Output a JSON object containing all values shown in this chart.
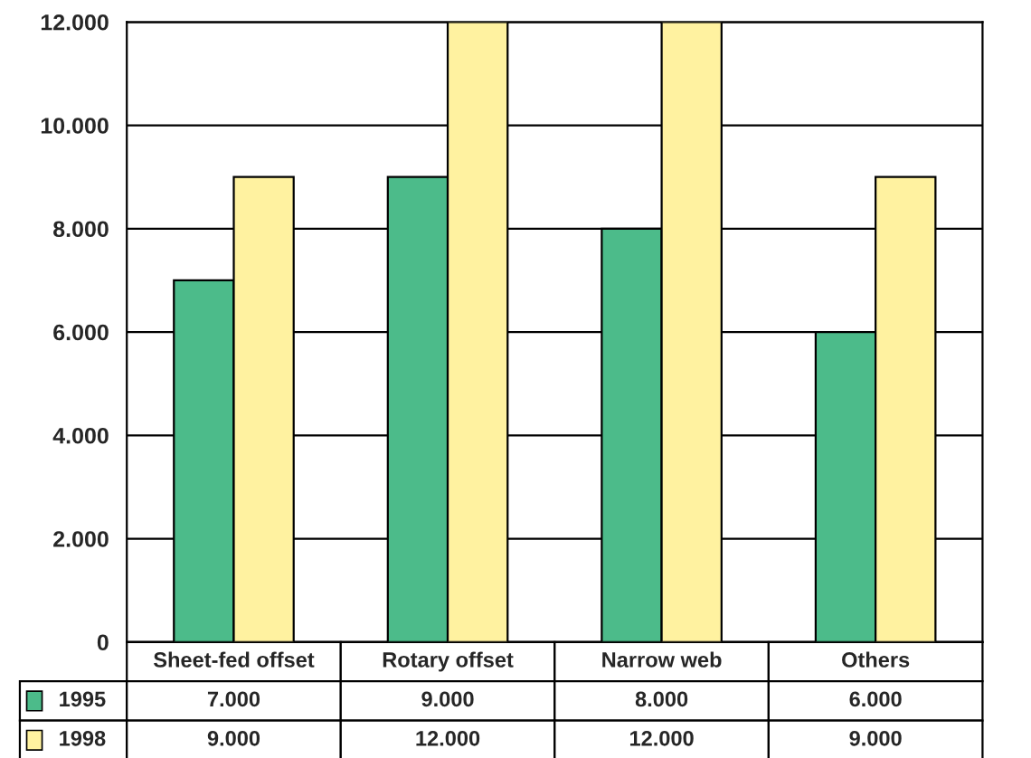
{
  "chart_data": {
    "type": "bar",
    "categories": [
      "Sheet-fed offset",
      "Rotary offset",
      "Narrow web",
      "Others"
    ],
    "series": [
      {
        "name": "1995",
        "color": "#4cbb8a",
        "values": [
          7000,
          9000,
          8000,
          6000
        ],
        "value_labels": [
          "7.000",
          "9.000",
          "8.000",
          "6.000"
        ]
      },
      {
        "name": "1998",
        "color": "#fff2a0",
        "values": [
          9000,
          12000,
          12000,
          9000
        ],
        "value_labels": [
          "9.000",
          "12.000",
          "12.000",
          "9.000"
        ]
      }
    ],
    "ylim": [
      0,
      12000
    ],
    "yticks": [
      {
        "value": 0,
        "label": "0"
      },
      {
        "value": 2000,
        "label": "2.000"
      },
      {
        "value": 4000,
        "label": "4.000"
      },
      {
        "value": 6000,
        "label": "6.000"
      },
      {
        "value": 8000,
        "label": "8.000"
      },
      {
        "value": 10000,
        "label": "10.000"
      },
      {
        "value": 12000,
        "label": "12.000"
      }
    ],
    "grid": "y",
    "legend": "bottom left",
    "tick_labels": "y"
  }
}
